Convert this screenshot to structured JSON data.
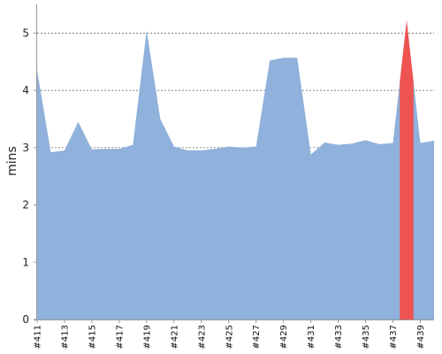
{
  "chart_data": {
    "type": "area",
    "ylabel": "mins",
    "xlabel": "",
    "title": "",
    "ylim": [
      0,
      5.5
    ],
    "y_ticks": [
      0,
      1,
      2,
      3,
      4,
      5
    ],
    "grid": "horizontal-dashed",
    "categories": [
      "#411",
      "#412",
      "#413",
      "#414",
      "#415",
      "#416",
      "#417",
      "#418",
      "#419",
      "#420",
      "#421",
      "#422",
      "#423",
      "#424",
      "#425",
      "#426",
      "#427",
      "#428",
      "#429",
      "#430",
      "#431",
      "#432",
      "#433",
      "#434",
      "#435",
      "#436",
      "#437",
      "#438",
      "#439",
      "#440"
    ],
    "x_tick_labels": [
      "#411",
      "#413",
      "#415",
      "#417",
      "#419",
      "#421",
      "#423",
      "#425",
      "#427",
      "#429",
      "#431",
      "#433",
      "#435",
      "#437",
      "#439"
    ],
    "values": [
      4.35,
      2.92,
      2.95,
      3.45,
      2.97,
      2.98,
      2.98,
      3.05,
      5.05,
      3.5,
      3.02,
      2.95,
      2.95,
      2.98,
      3.02,
      3.0,
      3.02,
      4.52,
      4.57,
      4.57,
      2.88,
      3.09,
      3.05,
      3.07,
      3.13,
      3.06,
      3.08,
      5.22,
      3.08,
      3.12
    ],
    "series": [
      {
        "name": "",
        "color": "#8fb1db"
      }
    ],
    "highlight": {
      "category": "#438",
      "color": "#ef5350"
    }
  }
}
